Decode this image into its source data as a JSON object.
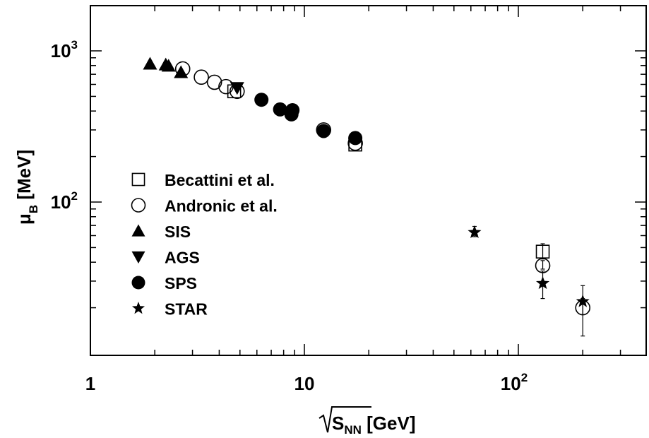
{
  "chart_data": {
    "type": "scatter",
    "x_scale": "log",
    "y_scale": "log",
    "xlim": [
      1,
      450
    ],
    "ylim": [
      12,
      2000
    ],
    "x_ticks": [
      {
        "value": 1,
        "base": "1",
        "exp": ""
      },
      {
        "value": 10,
        "base": "10",
        "exp": ""
      },
      {
        "value": 100,
        "base": "10",
        "exp": "2"
      }
    ],
    "y_ticks": [
      {
        "value": 100,
        "base": "10",
        "exp": "2"
      },
      {
        "value": 1000,
        "base": "10",
        "exp": "3"
      }
    ],
    "xlabel": {
      "prefix": "",
      "main": "S",
      "sub": "NN",
      "suffix": " [GeV]"
    },
    "ylabel": {
      "main": "μ",
      "sub": "B",
      "suffix": " [MeV]"
    },
    "grid": false,
    "legend_position": "left",
    "series": [
      {
        "name": "Becattini et al.",
        "marker": "open-square",
        "color": "#000000",
        "points": [
          {
            "x": 4.7,
            "y": 540
          },
          {
            "x": 17.3,
            "y": 240
          },
          {
            "x": 130,
            "y": 47,
            "err": [
              42,
              53
            ]
          }
        ]
      },
      {
        "name": "Andronic et al.",
        "marker": "open-circle",
        "color": "#000000",
        "points": [
          {
            "x": 2.7,
            "y": 760
          },
          {
            "x": 3.3,
            "y": 670
          },
          {
            "x": 3.8,
            "y": 620
          },
          {
            "x": 4.3,
            "y": 580
          },
          {
            "x": 4.85,
            "y": 540
          },
          {
            "x": 12.3,
            "y": 300
          },
          {
            "x": 17.3,
            "y": 245
          },
          {
            "x": 130,
            "y": 38,
            "err": [
              36,
              41
            ]
          },
          {
            "x": 200,
            "y": 20,
            "err": [
              18,
              23
            ]
          }
        ]
      },
      {
        "name": "SIS",
        "marker": "filled-triangle-up",
        "color": "#000000",
        "points": [
          {
            "x": 1.9,
            "y": 820
          },
          {
            "x": 2.25,
            "y": 810
          },
          {
            "x": 2.32,
            "y": 795
          },
          {
            "x": 2.65,
            "y": 720
          }
        ]
      },
      {
        "name": "AGS",
        "marker": "filled-triangle-down",
        "color": "#000000",
        "points": [
          {
            "x": 4.85,
            "y": 570
          }
        ]
      },
      {
        "name": "SPS",
        "marker": "filled-circle",
        "color": "#000000",
        "points": [
          {
            "x": 6.3,
            "y": 475
          },
          {
            "x": 7.7,
            "y": 410
          },
          {
            "x": 8.7,
            "y": 380
          },
          {
            "x": 8.8,
            "y": 405
          },
          {
            "x": 12.3,
            "y": 295
          },
          {
            "x": 17.3,
            "y": 265
          }
        ]
      },
      {
        "name": "STAR",
        "marker": "filled-star",
        "color": "#000000",
        "points": [
          {
            "x": 62.4,
            "y": 63,
            "err": [
              59,
              69
            ]
          },
          {
            "x": 130,
            "y": 29,
            "err": [
              23,
              35
            ]
          },
          {
            "x": 200,
            "y": 22,
            "err": [
              13,
              28
            ]
          }
        ]
      }
    ]
  }
}
